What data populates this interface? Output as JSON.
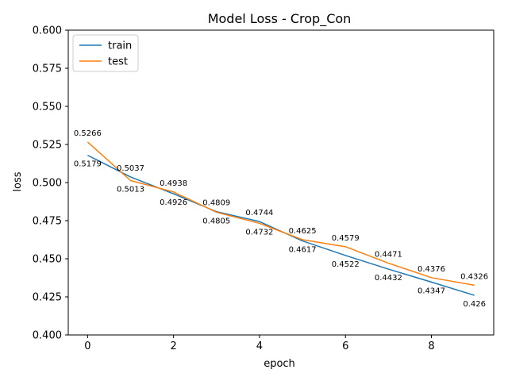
{
  "chart_data": {
    "type": "line",
    "title": "Model Loss - Crop_Con",
    "xlabel": "epoch",
    "ylabel": "loss",
    "x": [
      0,
      1,
      2,
      3,
      4,
      5,
      6,
      7,
      8,
      9
    ],
    "xlim": [
      -0.45,
      9.45
    ],
    "ylim": [
      0.4,
      0.6
    ],
    "xticks": [
      0,
      2,
      4,
      6,
      8
    ],
    "xtick_labels": [
      "0",
      "2",
      "4",
      "6",
      "8"
    ],
    "yticks": [
      0.4,
      0.425,
      0.45,
      0.475,
      0.5,
      0.525,
      0.55,
      0.575,
      0.6
    ],
    "ytick_labels": [
      "0.400",
      "0.425",
      "0.450",
      "0.475",
      "0.500",
      "0.525",
      "0.550",
      "0.575",
      "0.600"
    ],
    "grid": false,
    "legend_position": "top-left",
    "series": [
      {
        "name": "train",
        "color": "#1f77b4",
        "values": [
          0.5179,
          0.5037,
          0.4926,
          0.4809,
          0.4744,
          0.4617,
          0.4522,
          0.4432,
          0.4347,
          0.426
        ],
        "labels": [
          "0.5179",
          "0.5037",
          "0.4926",
          "0.4809",
          "0.4744",
          "0.4617",
          "0.4522",
          "0.4432",
          "0.4347",
          "0.426"
        ]
      },
      {
        "name": "test",
        "color": "#ff7f0e",
        "values": [
          0.5266,
          0.5013,
          0.4938,
          0.4805,
          0.4732,
          0.4625,
          0.4579,
          0.4471,
          0.4376,
          0.4326
        ],
        "labels": [
          "0.5266",
          "0.5013",
          "0.4938",
          "0.4805",
          "0.4732",
          "0.4625",
          "0.4579",
          "0.4471",
          "0.4376",
          "0.4326"
        ]
      }
    ]
  }
}
